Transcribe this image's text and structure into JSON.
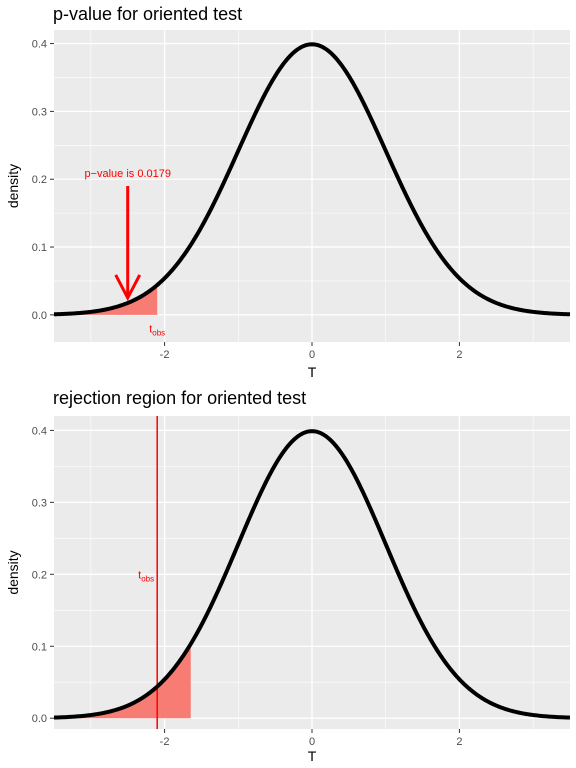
{
  "chart_data": [
    {
      "type": "line",
      "title": "p-value for oriented test",
      "xlabel": "T",
      "ylabel": "density",
      "xlim": [
        -3.5,
        3.5
      ],
      "ylim": [
        -0.04,
        0.42
      ],
      "x_ticks": [
        -2,
        0,
        2
      ],
      "x_tick_labels": [
        "-2",
        "0",
        "2"
      ],
      "y_ticks": [
        0.0,
        0.1,
        0.2,
        0.3,
        0.4
      ],
      "y_tick_labels": [
        "0.0",
        "0.1",
        "0.2",
        "0.3",
        "0.4"
      ],
      "grid": true,
      "series": [
        {
          "curve": "standard normal density",
          "color": "#000000"
        }
      ],
      "shaded_region": {
        "from": -3.5,
        "to": -2.1,
        "color": "#f8766d"
      },
      "t_obs": -2.1,
      "annotations": {
        "p_value_text": "p−value is 0.0179",
        "arrow_x": -2.5,
        "arrow_from_y": 0.19,
        "arrow_to_y": 0.025,
        "text_x": -2.5,
        "text_y": 0.2,
        "t_obs_label": "t",
        "t_obs_subscript": "obs",
        "t_obs_label_x": -2.1,
        "t_obs_label_y": -0.02,
        "color": "#ff0000"
      }
    },
    {
      "type": "line",
      "title": "rejection region for oriented test",
      "xlabel": "T",
      "ylabel": "density",
      "xlim": [
        -3.5,
        3.5
      ],
      "ylim": [
        -0.015,
        0.42
      ],
      "x_ticks": [
        -2,
        0,
        2
      ],
      "x_tick_labels": [
        "-2",
        "0",
        "2"
      ],
      "y_ticks": [
        0.0,
        0.1,
        0.2,
        0.3,
        0.4
      ],
      "y_tick_labels": [
        "0.0",
        "0.1",
        "0.2",
        "0.3",
        "0.4"
      ],
      "grid": true,
      "series": [
        {
          "curve": "standard normal density",
          "color": "#000000"
        }
      ],
      "shaded_region": {
        "from": -3.5,
        "to": -1.645,
        "color": "#f8766d"
      },
      "t_obs": -2.1,
      "annotations": {
        "vline_x": -2.1,
        "t_obs_label": "t",
        "t_obs_subscript": "obs",
        "t_obs_label_x": -2.25,
        "t_obs_label_y": 0.2,
        "color": "#ff0000"
      }
    }
  ]
}
